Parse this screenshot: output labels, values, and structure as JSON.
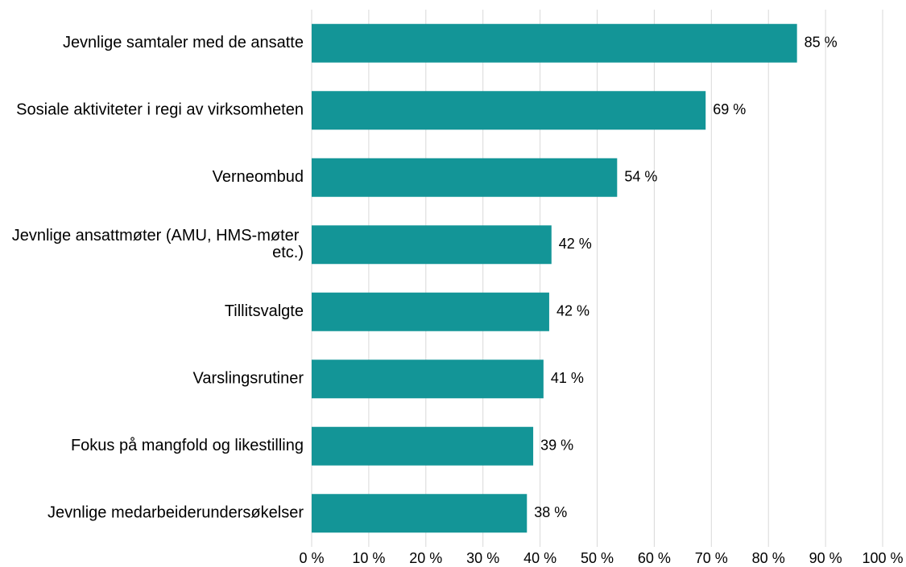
{
  "chart_data": {
    "type": "bar",
    "orientation": "horizontal",
    "categories": [
      "Jevnlige samtaler med de ansatte",
      "Sosiale aktiviteter i regi av virksomheten",
      "Verneombud",
      "Jevnlige ansattmøter (AMU, HMS-møter etc.)",
      "Tillitsvalgte",
      "Varslingsrutiner",
      "Fokus på mangfold og likestilling",
      "Jevnlige medarbeiderundersøkelser"
    ],
    "values": [
      85,
      69,
      53.5,
      42,
      41.6,
      40.6,
      38.8,
      37.7
    ],
    "value_labels": [
      "85 %",
      "69 %",
      "54 %",
      "42 %",
      "42 %",
      "41 %",
      "39 %",
      "38 %"
    ],
    "color": "#139597",
    "xlim": [
      0,
      100
    ],
    "xticks": [
      {
        "value": 0,
        "label": "0 %"
      },
      {
        "value": 10,
        "label": "10 %"
      },
      {
        "value": 20,
        "label": "20 %"
      },
      {
        "value": 30,
        "label": "30 %"
      },
      {
        "value": 40,
        "label": "40 %"
      },
      {
        "value": 50,
        "label": "50 %"
      },
      {
        "value": 60,
        "label": "60 %"
      },
      {
        "value": 70,
        "label": "70 %"
      },
      {
        "value": 80,
        "label": "80 %"
      },
      {
        "value": 90,
        "label": "90 %"
      },
      {
        "value": 100,
        "label": "100 %"
      }
    ],
    "grid": true
  }
}
